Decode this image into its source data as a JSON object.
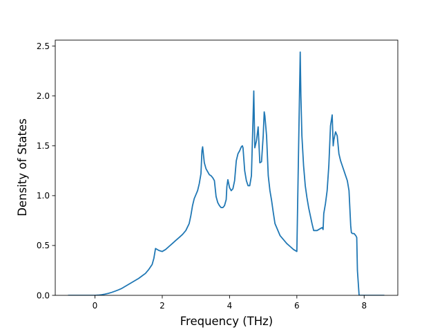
{
  "chart_data": {
    "type": "line",
    "title": "",
    "xlabel": "Frequency (THz)",
    "ylabel": "Density of States",
    "xlim": [
      -1.18,
      9.0
    ],
    "ylim": [
      0.0,
      2.56
    ],
    "x_ticks": [
      0,
      2,
      4,
      6,
      8
    ],
    "y_ticks": [
      0.0,
      0.5,
      1.0,
      1.5,
      2.0,
      2.5
    ],
    "x_tick_labels": [
      "0",
      "2",
      "4",
      "6",
      "8"
    ],
    "y_tick_labels": [
      "0.0",
      "0.5",
      "1.0",
      "1.5",
      "2.0",
      "2.5"
    ],
    "grid": false,
    "legend": "none",
    "series": [
      {
        "color": "#1f77b4",
        "x": [
          -0.8,
          -0.5,
          -0.2,
          0.0,
          0.1,
          0.2,
          0.3,
          0.4,
          0.5,
          0.6,
          0.7,
          0.8,
          0.9,
          1.0,
          1.1,
          1.2,
          1.3,
          1.4,
          1.5,
          1.6,
          1.7,
          1.75,
          1.8,
          1.9,
          2.0,
          2.1,
          2.2,
          2.3,
          2.4,
          2.5,
          2.6,
          2.7,
          2.8,
          2.85,
          2.9,
          2.95,
          3.0,
          3.05,
          3.1,
          3.15,
          3.18,
          3.2,
          3.25,
          3.3,
          3.35,
          3.4,
          3.45,
          3.5,
          3.55,
          3.6,
          3.65,
          3.7,
          3.75,
          3.8,
          3.85,
          3.9,
          3.92,
          3.95,
          4.0,
          4.05,
          4.1,
          4.15,
          4.2,
          4.25,
          4.3,
          4.35,
          4.38,
          4.4,
          4.45,
          4.5,
          4.55,
          4.6,
          4.65,
          4.7,
          4.72,
          4.75,
          4.8,
          4.85,
          4.9,
          4.95,
          5.0,
          5.03,
          5.05,
          5.1,
          5.15,
          5.2,
          5.25,
          5.3,
          5.35,
          5.4,
          5.5,
          5.6,
          5.7,
          5.8,
          5.9,
          6.0,
          6.1,
          6.12,
          6.15,
          6.2,
          6.25,
          6.3,
          6.35,
          6.4,
          6.45,
          6.5,
          6.6,
          6.7,
          6.75,
          6.78,
          6.8,
          6.85,
          6.9,
          6.95,
          7.0,
          7.05,
          7.08,
          7.1,
          7.15,
          7.2,
          7.25,
          7.3,
          7.35,
          7.4,
          7.45,
          7.5,
          7.55,
          7.6,
          7.62,
          7.65,
          7.7,
          7.75,
          7.78,
          7.8,
          7.85,
          7.9,
          8.0,
          8.3,
          8.6
        ],
        "y": [
          0.0,
          0.0,
          0.0,
          0.0,
          0.002,
          0.006,
          0.012,
          0.02,
          0.03,
          0.042,
          0.055,
          0.07,
          0.09,
          0.11,
          0.13,
          0.15,
          0.17,
          0.195,
          0.22,
          0.26,
          0.31,
          0.37,
          0.47,
          0.45,
          0.44,
          0.46,
          0.49,
          0.52,
          0.55,
          0.58,
          0.61,
          0.65,
          0.72,
          0.8,
          0.9,
          0.97,
          1.01,
          1.05,
          1.12,
          1.22,
          1.45,
          1.49,
          1.33,
          1.27,
          1.24,
          1.21,
          1.2,
          1.18,
          1.15,
          0.99,
          0.93,
          0.9,
          0.88,
          0.88,
          0.9,
          0.96,
          1.09,
          1.16,
          1.08,
          1.05,
          1.07,
          1.15,
          1.35,
          1.42,
          1.45,
          1.49,
          1.5,
          1.48,
          1.25,
          1.15,
          1.1,
          1.1,
          1.2,
          1.8,
          2.05,
          1.48,
          1.55,
          1.69,
          1.33,
          1.34,
          1.6,
          1.84,
          1.8,
          1.6,
          1.2,
          1.05,
          0.95,
          0.83,
          0.72,
          0.68,
          0.6,
          0.56,
          0.52,
          0.49,
          0.46,
          0.44,
          2.44,
          2.0,
          1.6,
          1.3,
          1.1,
          0.98,
          0.88,
          0.8,
          0.72,
          0.65,
          0.65,
          0.67,
          0.68,
          0.66,
          0.82,
          0.92,
          1.05,
          1.3,
          1.7,
          1.81,
          1.5,
          1.56,
          1.64,
          1.6,
          1.42,
          1.35,
          1.3,
          1.25,
          1.2,
          1.15,
          1.05,
          0.7,
          0.63,
          0.62,
          0.62,
          0.6,
          0.58,
          0.25,
          0.0,
          0.0,
          0.0,
          0.0,
          0.0
        ]
      }
    ]
  }
}
